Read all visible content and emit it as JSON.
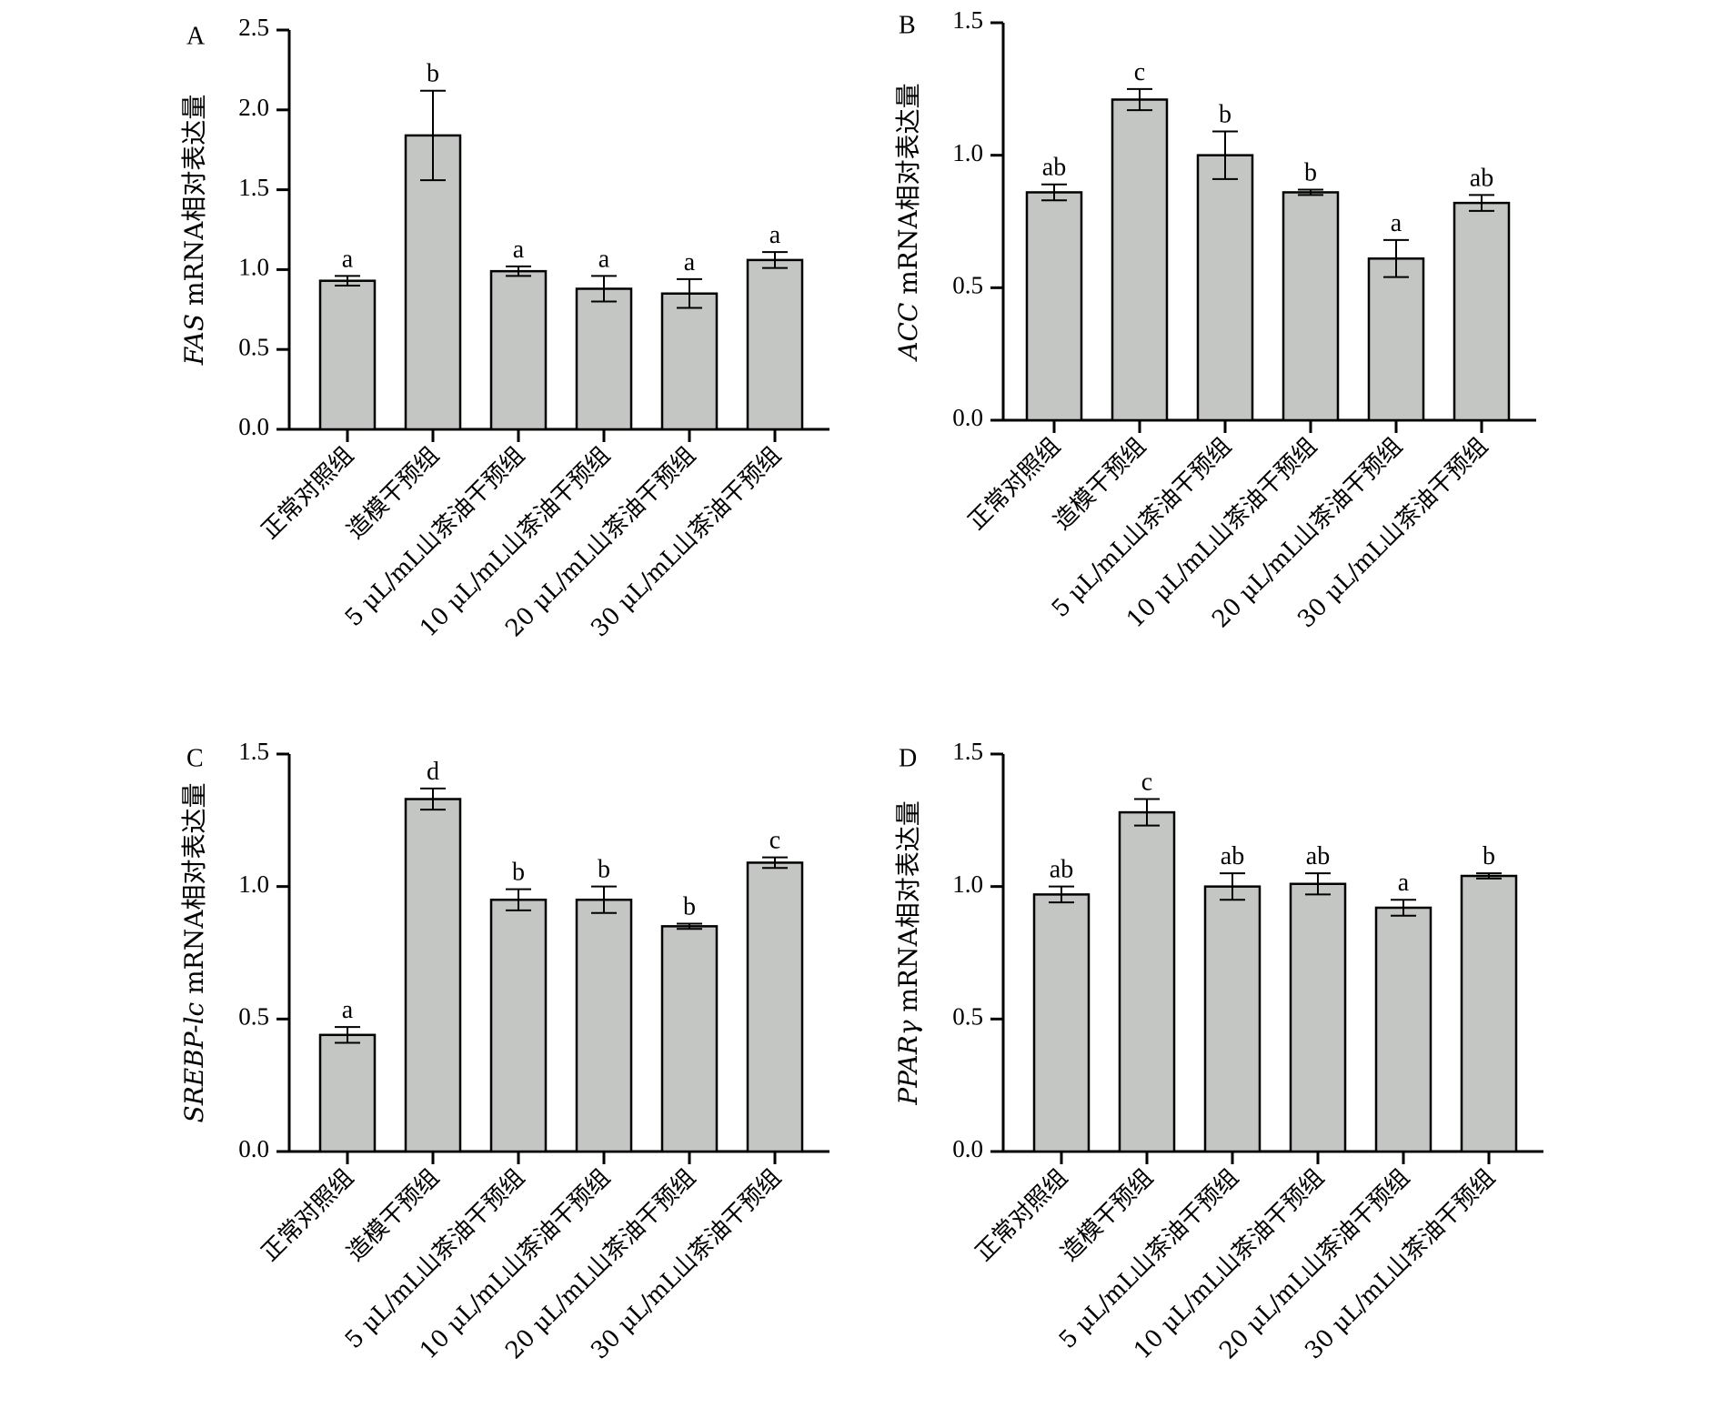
{
  "chart_data": [
    {
      "type": "bar",
      "panel_label": "A",
      "ylabel_gene": "FAS",
      "ylabel_text": "mRNA相对表达量",
      "ylim": [
        0,
        2.5
      ],
      "yticks": [
        "0.0",
        "0.5",
        "1.0",
        "1.5",
        "2.0",
        "2.5"
      ],
      "categories": [
        "正常对照组",
        "造模干预组",
        "5 μL/mL山茶油干预组",
        "10 μL/mL山茶油干预组",
        "20 μL/mL山茶油干预组",
        "30 μL/mL山茶油干预组"
      ],
      "values": [
        0.93,
        1.84,
        0.99,
        0.88,
        0.85,
        1.06
      ],
      "errors": [
        0.03,
        0.28,
        0.03,
        0.08,
        0.09,
        0.05
      ],
      "significance": [
        "a",
        "b",
        "a",
        "a",
        "a",
        "a"
      ]
    },
    {
      "type": "bar",
      "panel_label": "B",
      "ylabel_gene": "ACC",
      "ylabel_text": "mRNA相对表达量",
      "ylim": [
        0,
        1.5
      ],
      "yticks": [
        "0.0",
        "0.5",
        "1.0",
        "1.5"
      ],
      "categories": [
        "正常对照组",
        "造模干预组",
        "5 μL/mL山茶油干预组",
        "10 μL/mL山茶油干预组",
        "20 μL/mL山茶油干预组",
        "30 μL/mL山茶油干预组"
      ],
      "values": [
        0.86,
        1.21,
        1.0,
        0.86,
        0.61,
        0.82
      ],
      "errors": [
        0.03,
        0.04,
        0.09,
        0.01,
        0.07,
        0.03
      ],
      "significance": [
        "ab",
        "c",
        "b",
        "b",
        "a",
        "ab"
      ]
    },
    {
      "type": "bar",
      "panel_label": "C",
      "ylabel_gene": "SREBP-lc",
      "ylabel_text": "mRNA相对表达量",
      "ylim": [
        0,
        1.5
      ],
      "yticks": [
        "0.0",
        "0.5",
        "1.0",
        "1.5"
      ],
      "categories": [
        "正常对照组",
        "造模干预组",
        "5 μL/mL山茶油干预组",
        "10 μL/mL山茶油干预组",
        "20 μL/mL山茶油干预组",
        "30 μL/mL山茶油干预组"
      ],
      "values": [
        0.44,
        1.33,
        0.95,
        0.95,
        0.85,
        1.09
      ],
      "errors": [
        0.03,
        0.04,
        0.04,
        0.05,
        0.01,
        0.02
      ],
      "significance": [
        "a",
        "d",
        "b",
        "b",
        "b",
        "c"
      ]
    },
    {
      "type": "bar",
      "panel_label": "D",
      "ylabel_gene": "PPARγ",
      "ylabel_text": "mRNA相对表达量",
      "ylim": [
        0,
        1.5
      ],
      "yticks": [
        "0.0",
        "0.5",
        "1.0",
        "1.5"
      ],
      "categories": [
        "正常对照组",
        "造模干预组",
        "5 μL/mL山茶油干预组",
        "10 μL/mL山茶油干预组",
        "20 μL/mL山茶油干预组",
        "30 μL/mL山茶油干预组"
      ],
      "values": [
        0.97,
        1.28,
        1.0,
        1.01,
        0.92,
        1.04
      ],
      "errors": [
        0.03,
        0.05,
        0.05,
        0.04,
        0.03,
        0.01
      ],
      "significance": [
        "ab",
        "c",
        "ab",
        "ab",
        "a",
        "b"
      ]
    }
  ]
}
